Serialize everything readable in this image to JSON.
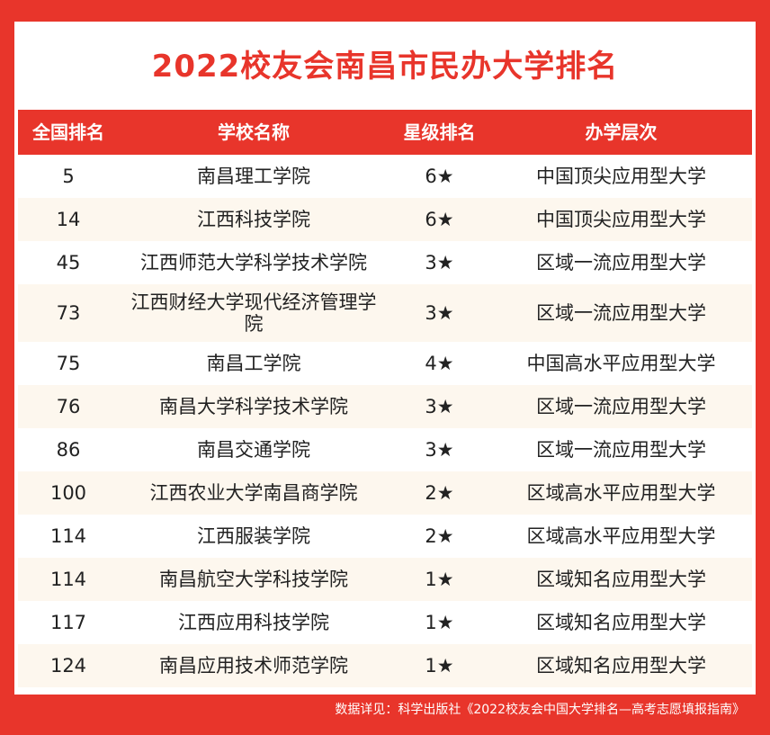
{
  "title": "2022校友会南昌市民办大学排名",
  "headers": [
    "全国排名",
    "学校名称",
    "星级排名",
    "办学层次"
  ],
  "rows": [
    {
      "rank": "5",
      "name": "南昌理工学院",
      "stars": "6★",
      "level": "中国顶尖应用型大学"
    },
    {
      "rank": "14",
      "name": "江西科技学院",
      "stars": "6★",
      "level": "中国顶尖应用型大学"
    },
    {
      "rank": "45",
      "name": "江西师范大学科学技术学院",
      "stars": "3★",
      "level": "区域一流应用型大学"
    },
    {
      "rank": "73",
      "name": "江西财经大学现代经济管理学院",
      "stars": "3★",
      "level": "区域一流应用型大学"
    },
    {
      "rank": "75",
      "name": "南昌工学院",
      "stars": "4★",
      "level": "中国高水平应用型大学"
    },
    {
      "rank": "76",
      "name": "南昌大学科学技术学院",
      "stars": "3★",
      "level": "区域一流应用型大学"
    },
    {
      "rank": "86",
      "name": "南昌交通学院",
      "stars": "3★",
      "level": "区域一流应用型大学"
    },
    {
      "rank": "100",
      "name": "江西农业大学南昌商学院",
      "stars": "2★",
      "level": "区域高水平应用型大学"
    },
    {
      "rank": "114",
      "name": "江西服装学院",
      "stars": "2★",
      "level": "区域高水平应用型大学"
    },
    {
      "rank": "114",
      "name": "南昌航空大学科技学院",
      "stars": "1★",
      "level": "区域知名应用型大学"
    },
    {
      "rank": "117",
      "name": "江西应用科技学院",
      "stars": "1★",
      "level": "区域知名应用型大学"
    },
    {
      "rank": "124",
      "name": "南昌应用技术师范学院",
      "stars": "1★",
      "level": "区域知名应用型大学"
    }
  ],
  "footer": "数据详见：科学出版社《2022校友会中国大学排名—高考志愿填报指南》",
  "colors": {
    "accent": "#e8352b",
    "alt_row": "#fdf7ee"
  }
}
